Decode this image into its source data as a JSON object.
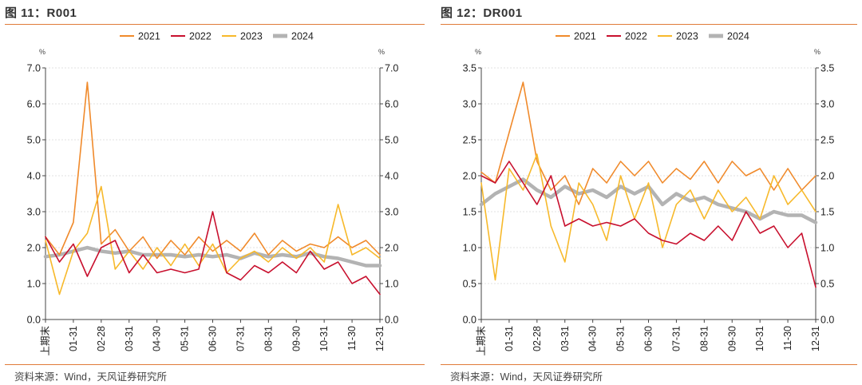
{
  "source_text": "资料来源：Wind，天风证券研究所",
  "colors": {
    "2021": "#f08a2b",
    "2022": "#c8102e",
    "2023": "#f7b92b",
    "2024": "#b3b3b3",
    "accent": "#e07b39"
  },
  "legend": [
    "2021",
    "2022",
    "2023",
    "2024"
  ],
  "chart_data": [
    {
      "type": "line",
      "title": "图 11：R001",
      "unit_left": "%",
      "unit_right": "%",
      "ylim": [
        0,
        7
      ],
      "yticks": [
        "0.0",
        "1.0",
        "2.0",
        "3.0",
        "4.0",
        "5.0",
        "6.0",
        "7.0"
      ],
      "xticks": [
        "上期末",
        "01-31",
        "02-28",
        "03-31",
        "04-30",
        "05-31",
        "06-30",
        "07-31",
        "08-31",
        "09-30",
        "10-31",
        "11-30",
        "12-31"
      ],
      "series": [
        {
          "name": "2021",
          "values": [
            2.3,
            1.8,
            2.7,
            6.6,
            2.1,
            2.5,
            1.9,
            2.3,
            1.7,
            2.2,
            1.8,
            2.3,
            1.9,
            2.2,
            1.9,
            2.4,
            1.8,
            2.2,
            1.9,
            2.1,
            2.0,
            2.3,
            2.0,
            2.2,
            1.8
          ]
        },
        {
          "name": "2022",
          "values": [
            2.3,
            1.6,
            2.1,
            1.2,
            2.0,
            2.2,
            1.3,
            1.8,
            1.3,
            1.4,
            1.3,
            1.4,
            3.0,
            1.3,
            1.1,
            1.5,
            1.3,
            1.6,
            1.3,
            1.9,
            1.4,
            1.6,
            1.0,
            1.2,
            0.7
          ]
        },
        {
          "name": "2023",
          "values": [
            2.2,
            0.7,
            1.9,
            2.4,
            3.7,
            1.4,
            1.9,
            1.4,
            2.0,
            1.5,
            2.1,
            1.5,
            2.1,
            1.3,
            1.7,
            1.9,
            1.6,
            2.0,
            1.7,
            2.0,
            1.6,
            3.2,
            1.8,
            2.0,
            1.7
          ]
        },
        {
          "name": "2024",
          "values": [
            1.75,
            1.8,
            1.9,
            2.0,
            1.9,
            1.85,
            1.9,
            1.8,
            1.8,
            1.8,
            1.75,
            1.8,
            1.75,
            1.8,
            1.7,
            1.85,
            1.75,
            1.8,
            1.75,
            1.85,
            1.75,
            1.7,
            1.6,
            1.5,
            1.5
          ]
        }
      ]
    },
    {
      "type": "line",
      "title": "图 12：DR001",
      "unit_left": "%",
      "unit_right": "%",
      "ylim": [
        0,
        3.5
      ],
      "yticks": [
        "0.0",
        "0.5",
        "1.0",
        "1.5",
        "2.0",
        "2.5",
        "3.0",
        "3.5"
      ],
      "xticks": [
        "上期末",
        "01-31",
        "02-28",
        "03-31",
        "04-30",
        "05-31",
        "06-30",
        "07-31",
        "08-31",
        "09-30",
        "10-31",
        "11-30",
        "12-31"
      ],
      "series": [
        {
          "name": "2021",
          "values": [
            2.05,
            1.9,
            2.6,
            3.3,
            2.2,
            1.8,
            2.0,
            1.6,
            2.1,
            1.9,
            2.2,
            2.0,
            2.2,
            1.9,
            2.1,
            1.95,
            2.2,
            1.9,
            2.2,
            2.0,
            2.1,
            1.8,
            2.1,
            1.8,
            2.0
          ]
        },
        {
          "name": "2022",
          "values": [
            2.0,
            1.9,
            2.2,
            1.9,
            1.6,
            2.0,
            1.3,
            1.4,
            1.3,
            1.35,
            1.3,
            1.4,
            1.2,
            1.1,
            1.05,
            1.2,
            1.1,
            1.3,
            1.1,
            1.5,
            1.2,
            1.3,
            1.0,
            1.2,
            0.45
          ]
        },
        {
          "name": "2023",
          "values": [
            1.9,
            0.55,
            2.1,
            1.8,
            2.3,
            1.3,
            0.8,
            1.9,
            1.6,
            1.1,
            2.0,
            1.4,
            1.9,
            1.0,
            1.6,
            1.8,
            1.4,
            1.8,
            1.5,
            1.7,
            1.4,
            2.0,
            1.6,
            1.8,
            1.5
          ]
        },
        {
          "name": "2024",
          "values": [
            1.6,
            1.75,
            1.85,
            1.95,
            1.8,
            1.7,
            1.85,
            1.75,
            1.8,
            1.7,
            1.85,
            1.75,
            1.85,
            1.6,
            1.75,
            1.65,
            1.7,
            1.6,
            1.55,
            1.5,
            1.4,
            1.5,
            1.45,
            1.45,
            1.35
          ]
        }
      ]
    }
  ]
}
